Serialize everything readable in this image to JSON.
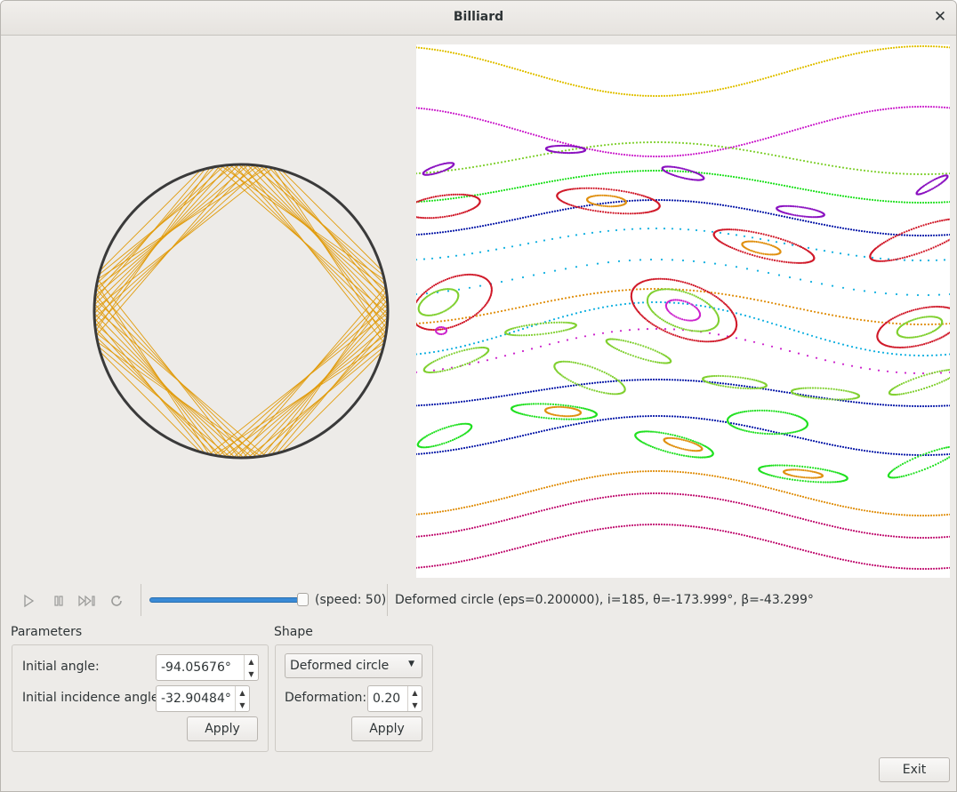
{
  "window": {
    "title": "Billiard"
  },
  "icons": {
    "close": "close-icon",
    "play": "play-icon",
    "pause": "pause-icon",
    "step": "step-forward-icon",
    "reset": "reset-icon"
  },
  "colors": {
    "trajectory": "#e19c0d",
    "boundary": "#3a3a3a",
    "slider": "#3a8ad6",
    "orbit_palette": [
      "#e0c000",
      "#cc22cc",
      "#20c8a0",
      "#8a10c0",
      "#80d030",
      "#d01828",
      "#e09010",
      "#10b0e0",
      "#0a1aa8",
      "#20e020",
      "#c01070"
    ]
  },
  "controls": {
    "speed_label": "(speed: 50)",
    "speed_value": 50,
    "status": "Deformed circle (eps=0.200000), i=185, θ=-173.999°, β=-43.299°"
  },
  "parameters": {
    "title": "Parameters",
    "initial_angle_label": "Initial angle:",
    "initial_angle_value": "-94.05676°",
    "incidence_label": "Initial incidence angle:",
    "incidence_value": "-32.90484°",
    "apply_label": "Apply"
  },
  "shape": {
    "title": "Shape",
    "selected": "Deformed circle",
    "deformation_label": "Deformation:",
    "deformation_value": "0.20",
    "apply_label": "Apply"
  },
  "exit_label": "Exit"
}
